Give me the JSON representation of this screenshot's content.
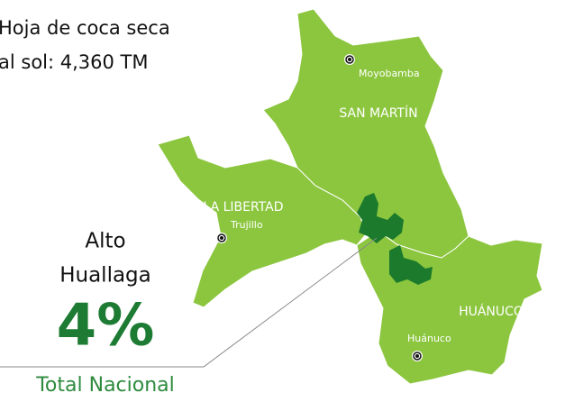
{
  "header": {
    "line1": "Hoja de coca seca",
    "line2": "al sol: 4,360 TM"
  },
  "regions": [
    {
      "label": "SAN MARTÍN"
    },
    {
      "label": "LA LIBERTAD"
    },
    {
      "label": "HUÁNUCO"
    }
  ],
  "cities": [
    {
      "label": "Moyobamba"
    },
    {
      "label": "Trujillo"
    },
    {
      "label": "Huánuco"
    }
  ],
  "callout": {
    "line1": "Alto",
    "line2": "Huallaga",
    "share": "4%",
    "caption": "Total Nacional"
  }
}
